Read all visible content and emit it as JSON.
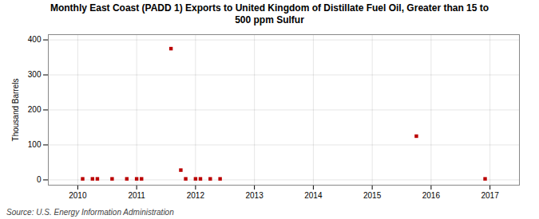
{
  "chart_data": {
    "type": "scatter",
    "title": "Monthly East Coast (PADD 1) Exports to United Kingdom of Distillate Fuel Oil, Greater than 15 to\n500 ppm Sulfur",
    "ylabel": "Thousand Barrels",
    "source": "Source: U.S. Energy Information Administration",
    "x": [
      2010.083,
      2010.25,
      2010.333,
      2010.583,
      2010.833,
      2011.0,
      2011.083,
      2011.583,
      2011.75,
      2011.833,
      2012.0,
      2012.083,
      2012.25,
      2012.417,
      2015.75,
      2016.917
    ],
    "values": [
      3,
      3,
      3,
      3,
      3,
      3,
      3,
      375,
      28,
      3,
      3,
      3,
      3,
      3,
      125,
      3
    ],
    "color": "#bb0000",
    "marker": "square",
    "xlim": [
      2009.5,
      2017.5
    ],
    "xticks": [
      2010,
      2011,
      2012,
      2013,
      2014,
      2015,
      2016,
      2017
    ],
    "ylim": [
      -15,
      415
    ],
    "yticks": [
      0,
      100,
      200,
      300,
      400
    ],
    "grid": true
  }
}
